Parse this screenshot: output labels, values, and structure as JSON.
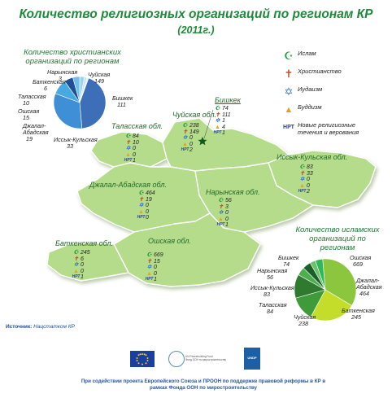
{
  "title": "Количество религиозных организаций по регионам КР",
  "subtitle": "(2011г.)",
  "legend": [
    {
      "icon": "crescent-star-icon",
      "glyph": "☪",
      "color": "#1f9a3b",
      "label": "Ислам"
    },
    {
      "icon": "latin-cross-icon",
      "glyph": "✝",
      "color": "#b5542b",
      "label": "Христианство"
    },
    {
      "icon": "star-of-david-icon",
      "glyph": "✡",
      "color": "#3a7fc4",
      "label": "Иудаизм"
    },
    {
      "icon": "buddha-icon",
      "glyph": "▲",
      "color": "#e0a617",
      "label": "Буддизм"
    },
    {
      "icon": "nrt-icon",
      "glyph": "НРТ",
      "color": "#2a3f9e",
      "label": "Новые религиозные течения и верования"
    }
  ],
  "regions": [
    {
      "name": "Таласская обл.",
      "islam": "84",
      "christian": "10",
      "judaism": "0",
      "buddhism": "0",
      "nrt": "1"
    },
    {
      "name": "Чуйская обл.",
      "islam": "238",
      "christian": "149",
      "judaism": "0",
      "buddhism": "0",
      "nrt": "2"
    },
    {
      "name": "Бишкек",
      "islam": "74",
      "christian": "111",
      "judaism": "1",
      "buddhism": "4",
      "nrt": "1"
    },
    {
      "name": "Иссык-Кульская обл.",
      "islam": "83",
      "christian": "33",
      "judaism": "0",
      "buddhism": "0",
      "nrt": "2"
    },
    {
      "name": "Джалал-Абадская обл.",
      "islam": "464",
      "christian": "19",
      "judaism": "0",
      "buddhism": "0",
      "nrt": "0"
    },
    {
      "name": "Нарынская обл.",
      "islam": "56",
      "christian": "3",
      "judaism": "0",
      "buddhism": "0",
      "nrt": "1"
    },
    {
      "name": "Ошская обл.",
      "islam": "669",
      "christian": "15",
      "judaism": "0",
      "buddhism": "0",
      "nrt": "1"
    },
    {
      "name": "Баткенская обл.",
      "islam": "245",
      "christian": "6",
      "judaism": "0",
      "buddhism": "0",
      "nrt": "1"
    }
  ],
  "chart_data": [
    {
      "type": "pie",
      "title": "Количество христианских организаций по регионам",
      "slices": [
        {
          "label": "Чуйская",
          "value": 149,
          "color": "#3d6fb8"
        },
        {
          "label": "Бишкек",
          "value": 111,
          "color": "#3f8fd6"
        },
        {
          "label": "Иссык-Кульская",
          "value": 33,
          "color": "#46a9e0"
        },
        {
          "label": "Джалал-Абадская",
          "value": 19,
          "color": "#1f4f9a"
        },
        {
          "label": "Ошская",
          "value": 15,
          "color": "#6fbfe8"
        },
        {
          "label": "Таласская",
          "value": 10,
          "color": "#9dd3ef"
        },
        {
          "label": "Баткенская",
          "value": 6,
          "color": "#c5e5f5"
        },
        {
          "label": "Нарынская",
          "value": 3,
          "color": "#dff1fa"
        }
      ]
    },
    {
      "type": "pie",
      "title": "Количество исламских организаций по регионам",
      "slices": [
        {
          "label": "Ошская",
          "value": 669,
          "color": "#8cc63f"
        },
        {
          "label": "Джалал-Абадская",
          "value": 464,
          "color": "#c4dc2a"
        },
        {
          "label": "Баткенская",
          "value": 245,
          "color": "#3f9a3a"
        },
        {
          "label": "Чуйская",
          "value": 238,
          "color": "#2f7a2f"
        },
        {
          "label": "Таласская",
          "value": 84,
          "color": "#4cae4c"
        },
        {
          "label": "Иссык-Кульская",
          "value": 83,
          "color": "#1c5e2a"
        },
        {
          "label": "Нарынская",
          "value": 56,
          "color": "#68c36a"
        },
        {
          "label": "Бишкек",
          "value": 74,
          "color": "#2fb85a"
        }
      ]
    }
  ],
  "source": {
    "label": "Источник:",
    "value": "Нацстатком КР"
  },
  "logos": {
    "un_text": "UN Peacebuilding Fund\nФонд ООН по миростроительству",
    "undp_text": "UNDP"
  },
  "footer": "При содействии проекта Европейского Союза и ПРООН по поддержке правовой реформы в КР в рамках Фонда ООН по миростроительству"
}
